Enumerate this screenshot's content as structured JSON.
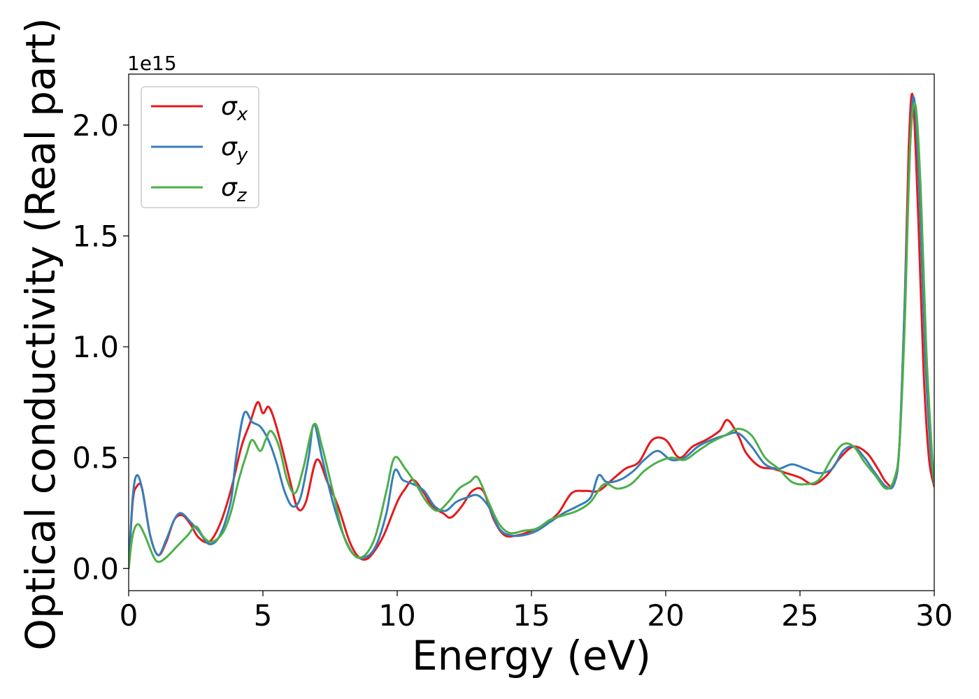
{
  "chart_data": {
    "type": "line",
    "title": "",
    "xlabel": "Energy (eV)",
    "ylabel": "Optical conductivity (Real part)",
    "offset_label": "1e15",
    "scale": 1000000000000000.0,
    "xlim": [
      0,
      30
    ],
    "ylim": [
      -0.1,
      2.23
    ],
    "xticks": [
      0,
      5,
      10,
      15,
      20,
      25,
      30
    ],
    "xtick_labels": [
      "0",
      "5",
      "10",
      "15",
      "20",
      "25",
      "30"
    ],
    "yticks": [
      0.0,
      0.5,
      1.0,
      1.5,
      2.0
    ],
    "ytick_labels": [
      "0.0",
      "0.5",
      "1.0",
      "1.5",
      "2.0"
    ],
    "grid": false,
    "legend_position": "top-left",
    "series": [
      {
        "name": "σ",
        "subscript": "x",
        "color": "#e41a1c",
        "x": [
          0,
          0.15,
          0.3,
          0.5,
          0.8,
          1.1,
          1.4,
          1.7,
          2.0,
          2.3,
          2.6,
          3.0,
          3.4,
          3.8,
          4.2,
          4.5,
          4.8,
          5.0,
          5.2,
          5.4,
          5.7,
          6.0,
          6.3,
          6.6,
          7.0,
          7.4,
          7.8,
          8.2,
          8.5,
          8.8,
          9.1,
          9.5,
          10.0,
          10.3,
          10.6,
          11.0,
          11.3,
          11.7,
          12.0,
          12.4,
          12.8,
          13.2,
          13.6,
          14.0,
          14.5,
          15.0,
          15.5,
          16.0,
          16.5,
          17.0,
          17.5,
          18.0,
          18.5,
          19.0,
          19.5,
          20.0,
          20.5,
          21.0,
          21.5,
          22.0,
          22.3,
          22.7,
          23.0,
          23.5,
          24.0,
          24.5,
          25.0,
          25.5,
          26.0,
          26.5,
          27.0,
          27.5,
          27.9,
          28.2,
          28.5,
          28.7,
          28.9,
          29.05,
          29.2,
          29.4,
          29.6,
          29.8,
          30.0
        ],
        "values": [
          0.0,
          0.3,
          0.37,
          0.36,
          0.15,
          0.06,
          0.12,
          0.22,
          0.24,
          0.2,
          0.14,
          0.12,
          0.2,
          0.35,
          0.55,
          0.65,
          0.75,
          0.7,
          0.73,
          0.68,
          0.55,
          0.4,
          0.27,
          0.3,
          0.49,
          0.39,
          0.28,
          0.13,
          0.06,
          0.04,
          0.07,
          0.15,
          0.3,
          0.36,
          0.4,
          0.34,
          0.28,
          0.25,
          0.23,
          0.28,
          0.35,
          0.35,
          0.22,
          0.15,
          0.15,
          0.17,
          0.2,
          0.25,
          0.34,
          0.35,
          0.35,
          0.4,
          0.45,
          0.48,
          0.58,
          0.58,
          0.5,
          0.55,
          0.58,
          0.62,
          0.67,
          0.6,
          0.52,
          0.46,
          0.45,
          0.43,
          0.41,
          0.38,
          0.42,
          0.5,
          0.55,
          0.52,
          0.45,
          0.39,
          0.38,
          0.55,
          1.2,
          1.9,
          2.13,
          1.6,
          0.9,
          0.5,
          0.37
        ]
      },
      {
        "name": "σ",
        "subscript": "y",
        "color": "#377eb8",
        "x": [
          0,
          0.15,
          0.3,
          0.5,
          0.8,
          1.1,
          1.4,
          1.7,
          1.95,
          2.3,
          2.6,
          3.0,
          3.4,
          3.8,
          4.0,
          4.3,
          4.6,
          4.9,
          5.2,
          5.5,
          5.8,
          6.1,
          6.4,
          6.7,
          6.9,
          7.2,
          7.6,
          8.0,
          8.4,
          8.8,
          9.2,
          9.6,
          9.9,
          10.2,
          10.6,
          11.0,
          11.4,
          11.8,
          12.2,
          12.6,
          13.0,
          13.4,
          13.8,
          14.2,
          14.7,
          15.2,
          15.7,
          16.2,
          16.7,
          17.2,
          17.5,
          17.8,
          18.3,
          18.8,
          19.2,
          19.7,
          20.2,
          20.7,
          21.2,
          21.7,
          22.2,
          22.7,
          23.2,
          23.7,
          24.2,
          24.7,
          25.2,
          25.7,
          26.2,
          26.6,
          27.0,
          27.4,
          27.8,
          28.2,
          28.5,
          28.7,
          28.9,
          29.1,
          29.25,
          29.45,
          29.65,
          29.85,
          30.0
        ],
        "values": [
          0.0,
          0.32,
          0.42,
          0.36,
          0.15,
          0.06,
          0.13,
          0.22,
          0.25,
          0.21,
          0.17,
          0.11,
          0.15,
          0.3,
          0.5,
          0.7,
          0.66,
          0.64,
          0.58,
          0.48,
          0.35,
          0.28,
          0.32,
          0.5,
          0.65,
          0.5,
          0.3,
          0.15,
          0.06,
          0.05,
          0.1,
          0.25,
          0.44,
          0.4,
          0.38,
          0.35,
          0.28,
          0.26,
          0.3,
          0.32,
          0.33,
          0.28,
          0.18,
          0.15,
          0.15,
          0.17,
          0.21,
          0.25,
          0.28,
          0.32,
          0.42,
          0.39,
          0.4,
          0.44,
          0.49,
          0.53,
          0.49,
          0.5,
          0.55,
          0.58,
          0.6,
          0.61,
          0.55,
          0.47,
          0.45,
          0.47,
          0.45,
          0.43,
          0.45,
          0.53,
          0.55,
          0.5,
          0.43,
          0.37,
          0.38,
          0.55,
          1.2,
          1.9,
          2.12,
          1.7,
          1.0,
          0.55,
          0.38
        ]
      },
      {
        "name": "σ",
        "subscript": "z",
        "color": "#4daf4a",
        "x": [
          0,
          0.15,
          0.35,
          0.6,
          0.9,
          1.1,
          1.4,
          1.8,
          2.2,
          2.5,
          2.8,
          3.1,
          3.5,
          3.8,
          4.1,
          4.4,
          4.6,
          4.9,
          5.1,
          5.3,
          5.6,
          5.9,
          6.2,
          6.5,
          6.9,
          7.2,
          7.6,
          8.0,
          8.4,
          8.8,
          9.2,
          9.6,
          9.9,
          10.3,
          10.7,
          11.1,
          11.5,
          11.9,
          12.3,
          12.7,
          13.0,
          13.4,
          13.8,
          14.2,
          14.7,
          15.2,
          15.7,
          16.2,
          16.7,
          17.2,
          17.7,
          18.2,
          18.7,
          19.2,
          19.7,
          20.2,
          20.7,
          21.2,
          21.7,
          22.2,
          22.7,
          23.2,
          23.7,
          24.2,
          24.7,
          25.2,
          25.7,
          26.2,
          26.6,
          27.0,
          27.4,
          27.8,
          28.2,
          28.5,
          28.7,
          28.9,
          29.1,
          29.3,
          29.5,
          29.7,
          29.9,
          30.0
        ],
        "values": [
          0.0,
          0.15,
          0.2,
          0.15,
          0.06,
          0.03,
          0.05,
          0.1,
          0.15,
          0.19,
          0.14,
          0.12,
          0.16,
          0.25,
          0.4,
          0.52,
          0.58,
          0.53,
          0.58,
          0.62,
          0.55,
          0.4,
          0.34,
          0.45,
          0.65,
          0.55,
          0.35,
          0.15,
          0.06,
          0.06,
          0.15,
          0.35,
          0.5,
          0.45,
          0.38,
          0.3,
          0.26,
          0.3,
          0.36,
          0.39,
          0.41,
          0.3,
          0.2,
          0.16,
          0.17,
          0.18,
          0.22,
          0.24,
          0.26,
          0.3,
          0.38,
          0.36,
          0.38,
          0.44,
          0.48,
          0.5,
          0.49,
          0.53,
          0.57,
          0.6,
          0.63,
          0.6,
          0.5,
          0.45,
          0.39,
          0.38,
          0.4,
          0.5,
          0.56,
          0.55,
          0.48,
          0.42,
          0.36,
          0.4,
          0.55,
          1.1,
          1.9,
          2.09,
          1.7,
          1.0,
          0.55,
          0.38
        ]
      }
    ]
  }
}
